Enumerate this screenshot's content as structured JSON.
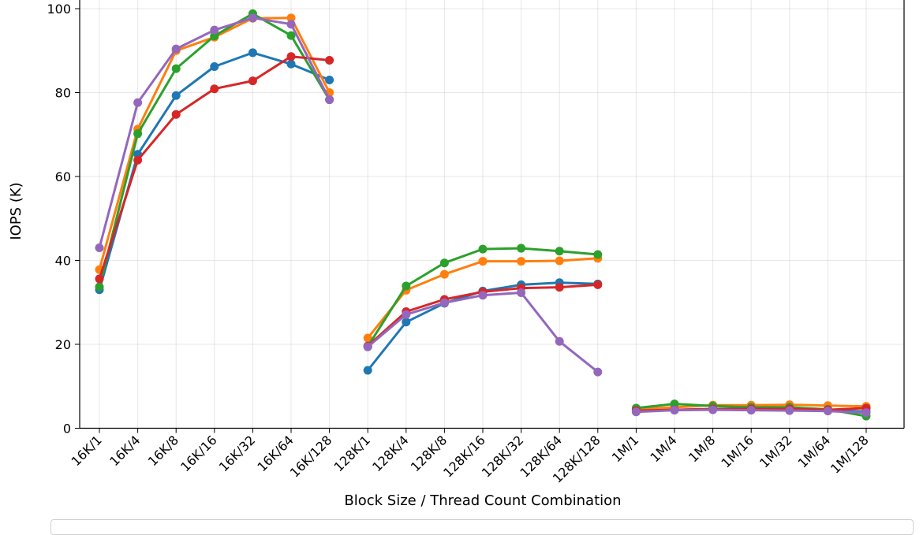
{
  "chart_data": {
    "type": "line",
    "title": "",
    "xlabel": "Block Size / Thread Count Combination",
    "ylabel": "IOPS (K)",
    "ylim": [
      0,
      100
    ],
    "yticks": [
      0,
      20,
      40,
      60,
      80,
      100
    ],
    "grid": true,
    "categories": [
      "16K/1",
      "16K/4",
      "16K/8",
      "16K/16",
      "16K/32",
      "16K/64",
      "16K/128",
      "128K/1",
      "128K/4",
      "128K/8",
      "128K/16",
      "128K/32",
      "128K/64",
      "128K/128",
      "1M/1",
      "1M/4",
      "1M/8",
      "1M/16",
      "1M/32",
      "1M/64",
      "1M/128"
    ],
    "groups": [
      [
        0,
        6
      ],
      [
        7,
        13
      ],
      [
        14,
        20
      ]
    ],
    "series": [
      {
        "color": "#1f77b4",
        "values": [
          33.0,
          65.3,
          79.3,
          86.2,
          89.5,
          86.8,
          83.0,
          13.8,
          25.3,
          29.8,
          32.7,
          34.2,
          34.7,
          34.4,
          4.4,
          4.4,
          4.5,
          4.5,
          4.4,
          4.3,
          4.0
        ]
      },
      {
        "color": "#ff7f0e",
        "values": [
          37.8,
          71.3,
          90.0,
          93.2,
          97.7,
          97.8,
          80.0,
          21.5,
          32.9,
          36.7,
          39.8,
          39.8,
          39.9,
          40.5,
          4.5,
          5.0,
          5.5,
          5.5,
          5.6,
          5.4,
          5.2
        ]
      },
      {
        "color": "#2ca02c",
        "values": [
          33.7,
          70.2,
          85.7,
          93.5,
          98.8,
          93.6,
          78.3,
          19.5,
          33.9,
          39.4,
          42.7,
          42.9,
          42.2,
          41.4,
          4.8,
          5.8,
          5.3,
          5.0,
          5.0,
          4.5,
          2.9
        ]
      },
      {
        "color": "#d62728",
        "values": [
          35.6,
          63.9,
          74.8,
          80.9,
          82.8,
          88.6,
          87.7,
          19.6,
          27.8,
          30.7,
          32.5,
          33.4,
          33.6,
          34.2,
          4.2,
          4.4,
          4.6,
          4.6,
          4.6,
          4.4,
          4.8
        ]
      },
      {
        "color": "#9467bd",
        "values": [
          43.0,
          77.6,
          90.4,
          94.9,
          97.8,
          96.3,
          78.3,
          19.4,
          27.1,
          29.9,
          31.7,
          32.3,
          20.7,
          13.4,
          3.9,
          4.3,
          4.4,
          4.3,
          4.2,
          4.1,
          3.7
        ]
      }
    ]
  }
}
